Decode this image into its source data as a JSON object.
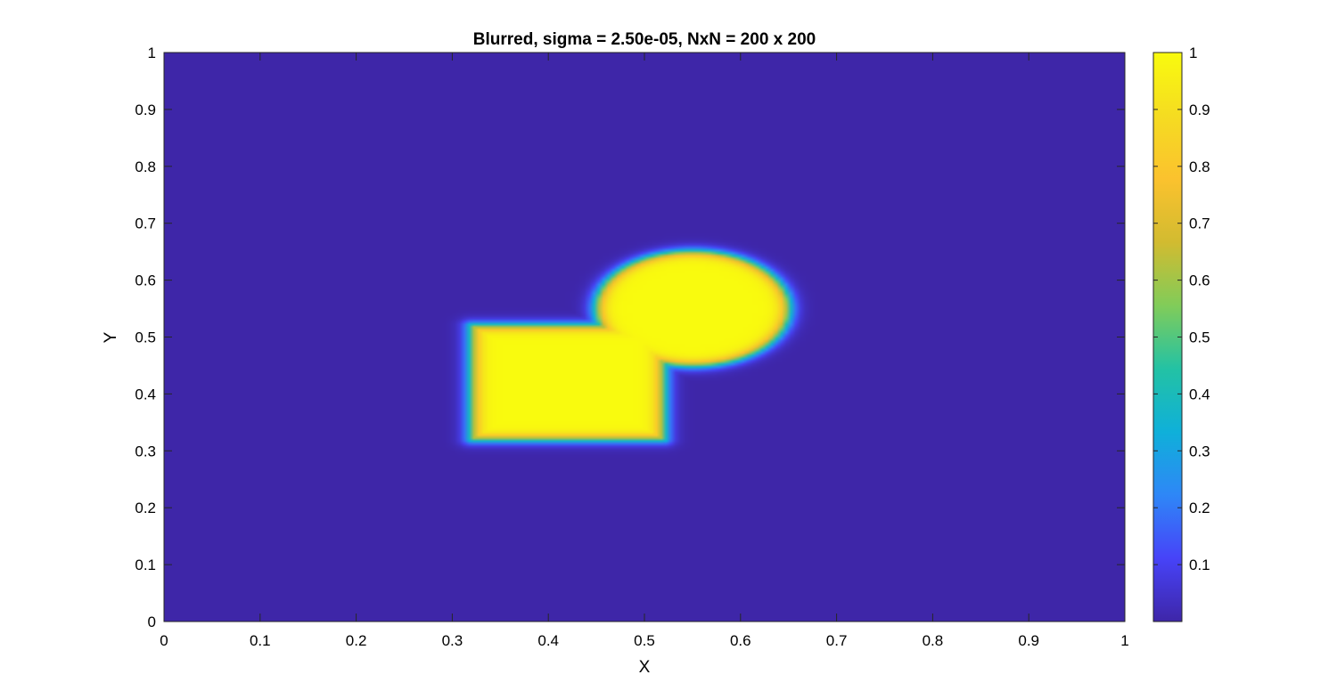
{
  "chart_data": {
    "type": "heatmap",
    "title": "Blurred, sigma = 2.50e-05, NxN = 200 x 200",
    "xlabel": "X",
    "ylabel": "Y",
    "xlim": [
      0,
      1
    ],
    "ylim": [
      0,
      1
    ],
    "xticks": [
      "0",
      "0.1",
      "0.2",
      "0.3",
      "0.4",
      "0.5",
      "0.6",
      "0.7",
      "0.8",
      "0.9",
      "1"
    ],
    "yticks": [
      "0",
      "0.1",
      "0.2",
      "0.3",
      "0.4",
      "0.5",
      "0.6",
      "0.7",
      "0.8",
      "0.9",
      "1"
    ],
    "grid": 200,
    "background_value": 0,
    "shapes": [
      {
        "kind": "rectangle",
        "value": 1,
        "x": [
          0.32,
          0.52
        ],
        "y": [
          0.32,
          0.52
        ]
      },
      {
        "kind": "ellipse",
        "value": 1,
        "center": [
          0.55,
          0.55
        ],
        "radius_x": 0.1,
        "radius_y": 0.1
      }
    ],
    "blur_width": 0.005,
    "colorbar": {
      "range": [
        0.0,
        1.0
      ],
      "ticks": [
        "0.1",
        "0.2",
        "0.3",
        "0.4",
        "0.5",
        "0.6",
        "0.7",
        "0.8",
        "0.9",
        "1"
      ],
      "colormap": "parula",
      "colormap_stops": [
        "#3e26a8",
        "#4743f8",
        "#2e87f7",
        "#0fb0d9",
        "#23c2a4",
        "#81cc59",
        "#d2bb30",
        "#fbc22e",
        "#f5dc21",
        "#f9fb0e"
      ]
    }
  }
}
